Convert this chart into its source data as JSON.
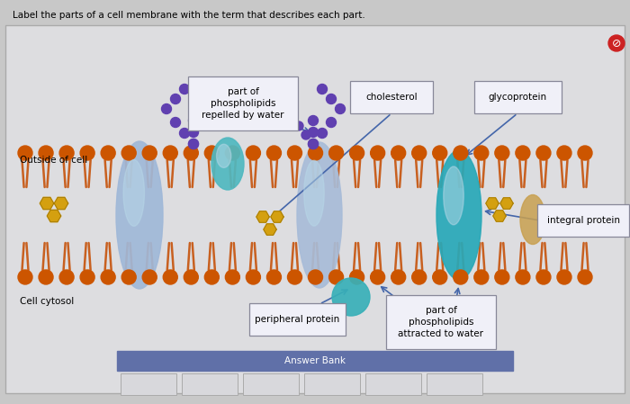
{
  "title": "Label the parts of a cell membrane with the term that describes each part.",
  "bg_outer": "#c8c8c8",
  "bg_inner": "#dddde0",
  "labels": {
    "outside_cell": "Outside of cell",
    "cell_cytosol": "Cell cytosol",
    "part_repelled": "part of\nphospholipids\nrepelled by water",
    "cholesterol": "cholesterol",
    "glycoprotein": "glycoprotein",
    "integral_protein": "integral protein",
    "peripheral_protein": "peripheral protein",
    "part_attracted": "part of\nphospholipids\nattracted to water"
  },
  "answer_bank_label": "Answer Bank",
  "phospholipid_head_color": "#cc5500",
  "phospholipid_tail_color": "#c86020",
  "cholesterol_color": "#d4a010",
  "integral_protein_color_blue": "#7090c0",
  "integral_protein_color_teal": "#30a8b0",
  "peripheral_protein_color": "#38b0b8",
  "purple_dot_color": "#6040b0",
  "label_box_bg": "#f0f0f8",
  "label_box_edge": "#888899",
  "arrow_color": "#4466aa",
  "answer_bank_bg": "#6070a8",
  "red_icon_color": "#cc2222"
}
